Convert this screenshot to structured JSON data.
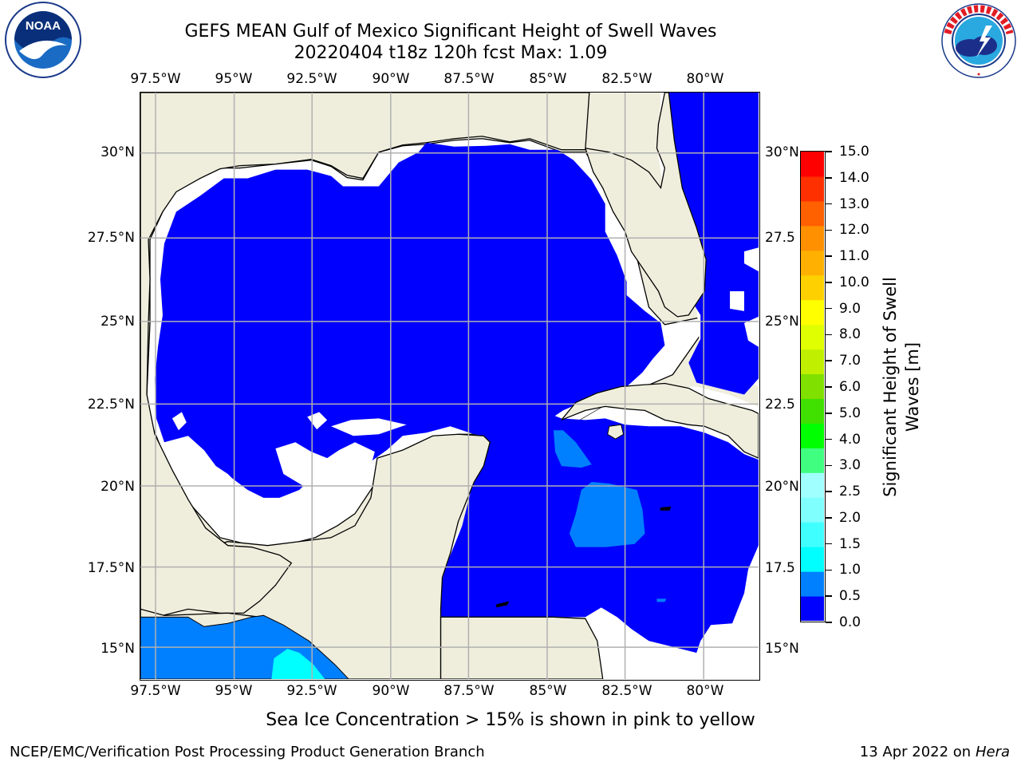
{
  "header": {
    "title_line1": "GEFS MEAN Gulf of Mexico Significant Height of Swell Waves",
    "title_line2": "20220404 t18z 120h fcst   Max: 1.09"
  },
  "logos": {
    "noaa": {
      "text": "NOAA",
      "ring_text": "NATIONAL OCEANIC AND ATMOSPHERIC ADMINISTRATION",
      "ring_text_bottom": "U.S. DEPARTMENT OF COMMERCE"
    },
    "nws": {
      "ring_text": "NATIONAL WEATHER SERVICE"
    }
  },
  "map": {
    "lon_labels": [
      "97.5°W",
      "95°W",
      "92.5°W",
      "90°W",
      "87.5°W",
      "85°W",
      "82.5°W",
      "80°W"
    ],
    "lat_labels_left": [
      "30°N",
      "27.5°N",
      "25°N",
      "22.5°N",
      "20°N",
      "17.5°N",
      "15°N"
    ],
    "lat_labels_right": [
      "30°N",
      "27.5",
      "25°N",
      "22.5",
      "20°N",
      "17.5",
      "15°N"
    ],
    "colors": {
      "land": "#efeedd",
      "ocean_fill": "#0000ff",
      "no_data": "#ffffff",
      "grid": "#b0b0b0"
    }
  },
  "colorbar": {
    "title_line1": "Significant Height of Swell",
    "title_line2": "Waves [m]",
    "labels": [
      "0.0",
      "0.5",
      "1.0",
      "1.5",
      "2.0",
      "2.5",
      "3.0",
      "4.0",
      "5.0",
      "6.0",
      "7.0",
      "8.0",
      "9.0",
      "10.0",
      "11.0",
      "12.0",
      "13.0",
      "14.0",
      "15.0"
    ],
    "colors": [
      "#0000ff",
      "#0080ff",
      "#00ffff",
      "#40ffff",
      "#80ffff",
      "#a0ffff",
      "#40ff80",
      "#00ff00",
      "#40e000",
      "#80e000",
      "#c0f000",
      "#e0ff00",
      "#ffff00",
      "#ffd000",
      "#ffb000",
      "#ff9000",
      "#ff6000",
      "#ff3000",
      "#ff0000"
    ]
  },
  "footer": {
    "ice_note": "Sea Ice Concentration > 15% is shown in pink to yellow",
    "left": "NCEP/EMC/Verification Post Processing Product Generation Branch",
    "right_date": "13 Apr 2022 on ",
    "right_machine": "Hera"
  }
}
